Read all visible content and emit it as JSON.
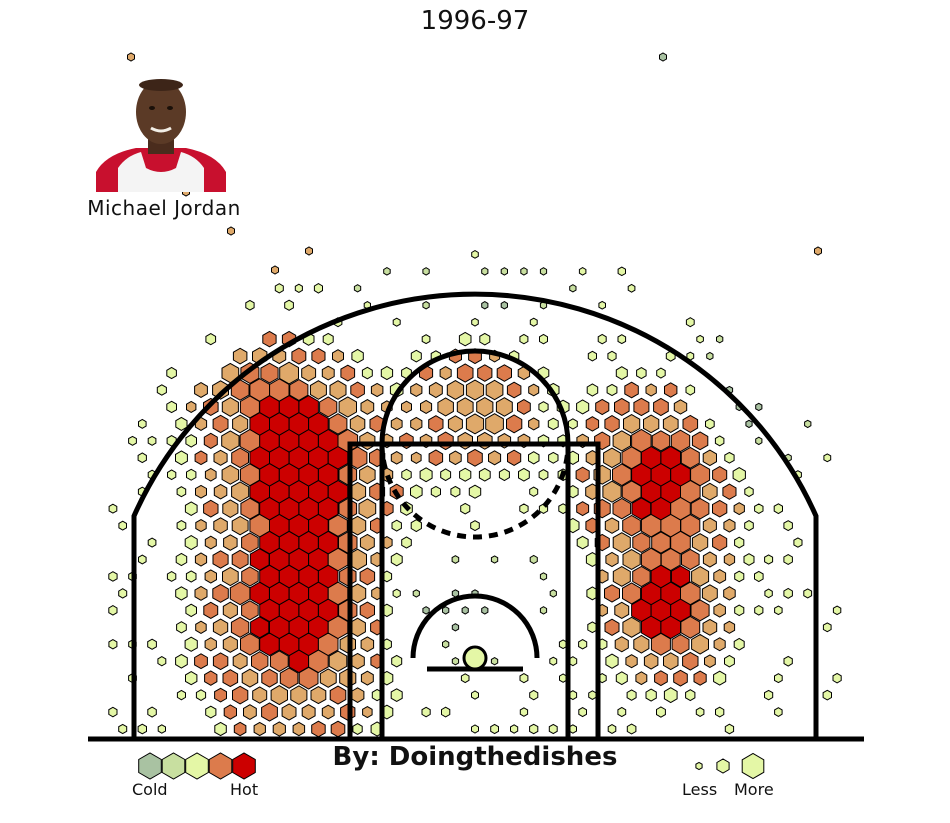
{
  "chart_data": {
    "type": "hexbin",
    "title": "1996-97",
    "player": "Michael Jordan",
    "credit": "By: Doingthedishes",
    "color_scale": {
      "low_label": "Cold",
      "high_label": "Hot",
      "colors": [
        "#a9c2a2",
        "#c8dfa0",
        "#e4f7a6",
        "#dc7b4c",
        "#cc0000"
      ]
    },
    "size_scale": {
      "low_label": "Less",
      "high_label": "More"
    },
    "hot_color_extra": "#dfa96a",
    "zones": [
      {
        "zone": "left-corner-midrange",
        "heat": "hot",
        "frequency": "high"
      },
      {
        "zone": "left-elbow",
        "heat": "hot",
        "frequency": "high"
      },
      {
        "zone": "right-elbow",
        "heat": "hot",
        "frequency": "high"
      },
      {
        "zone": "right-baseline-midrange",
        "heat": "hot",
        "frequency": "high"
      },
      {
        "zone": "top-of-key",
        "heat": "warm",
        "frequency": "medium"
      },
      {
        "zone": "paint",
        "heat": "cool",
        "frequency": "low"
      },
      {
        "zone": "right-wing-three",
        "heat": "cool",
        "frequency": "medium"
      },
      {
        "zone": "top-three",
        "heat": "cold",
        "frequency": "low"
      }
    ]
  }
}
